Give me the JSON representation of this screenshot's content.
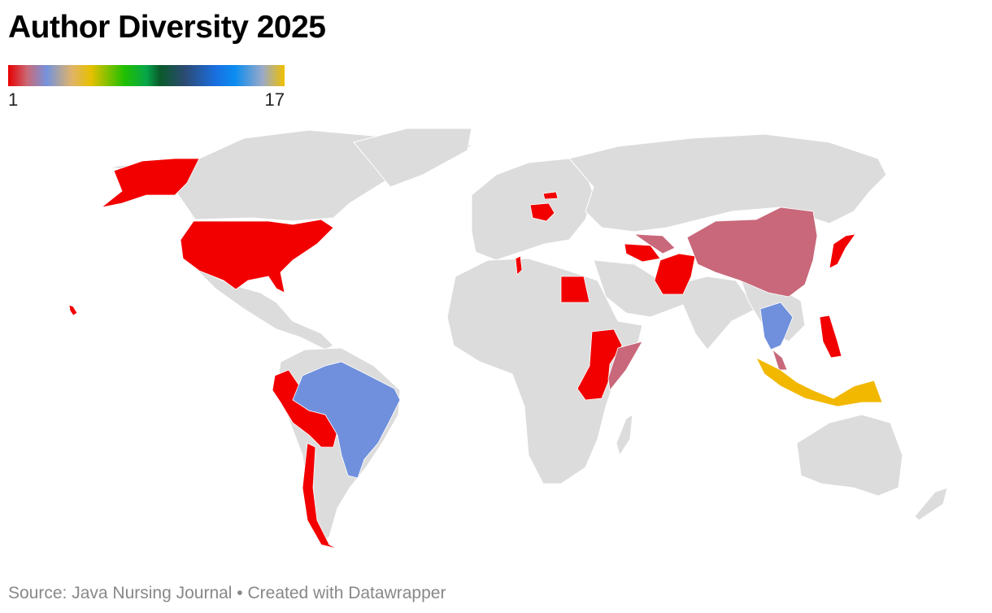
{
  "title": "Author Diversity 2025",
  "legend": {
    "min_label": "1",
    "max_label": "17"
  },
  "source": "Source: Java Nursing Journal • Created with Datawrapper",
  "colors": {
    "land": "#dcdcdc",
    "value_1": "#f20000",
    "value_2": "#c8687a",
    "value_3": "#7090dd",
    "value_max": "#f2b800"
  },
  "highlighted_regions": [
    {
      "name": "United States",
      "value": 1
    },
    {
      "name": "Peru",
      "value": 1
    },
    {
      "name": "Bolivia",
      "value": 1
    },
    {
      "name": "Chile",
      "value": 1
    },
    {
      "name": "Brazil",
      "value": 3
    },
    {
      "name": "Egypt",
      "value": 1
    },
    {
      "name": "Tunisia",
      "value": 1
    },
    {
      "name": "Poland",
      "value": 1
    },
    {
      "name": "Latvia",
      "value": 1
    },
    {
      "name": "Turkmenistan",
      "value": 1
    },
    {
      "name": "Uzbekistan",
      "value": 2
    },
    {
      "name": "Pakistan",
      "value": 1
    },
    {
      "name": "Afghanistan",
      "value": 1
    },
    {
      "name": "China",
      "value": 2
    },
    {
      "name": "Japan",
      "value": 2
    },
    {
      "name": "Ethiopia",
      "value": 1
    },
    {
      "name": "Somalia",
      "value": 2
    },
    {
      "name": "Kenya",
      "value": 1
    },
    {
      "name": "Tanzania",
      "value": 1
    },
    {
      "name": "Thailand",
      "value": 3
    },
    {
      "name": "Vietnam",
      "value": 3
    },
    {
      "name": "Malaysia",
      "value": 2
    },
    {
      "name": "Philippines",
      "value": 1
    },
    {
      "name": "Indonesia",
      "value": 17
    }
  ]
}
